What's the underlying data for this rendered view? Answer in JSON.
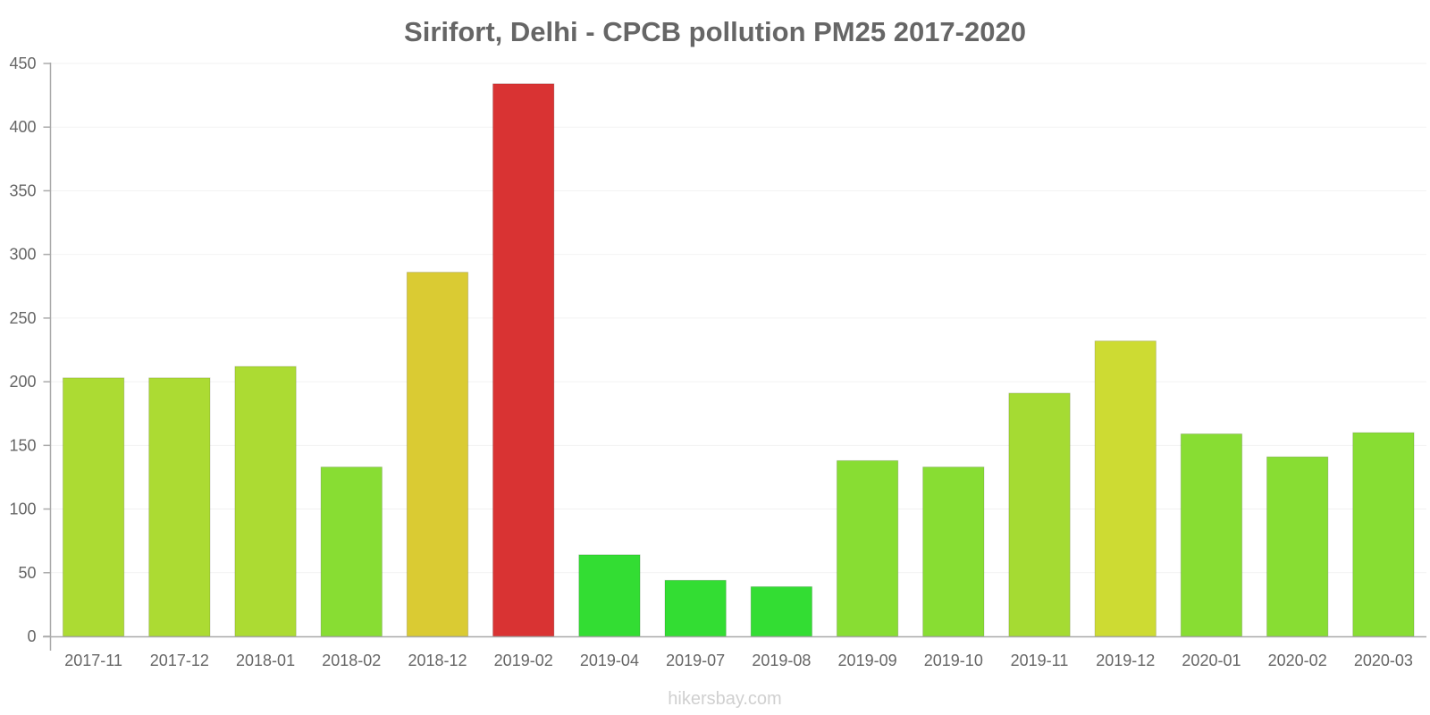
{
  "chart_data": {
    "type": "bar",
    "title": "Sirifort, Delhi - CPCB pollution PM25 2017-2020",
    "xlabel": "",
    "ylabel": "",
    "ylim": [
      0,
      450
    ],
    "yticks": [
      0,
      50,
      100,
      150,
      200,
      250,
      300,
      350,
      400,
      450
    ],
    "categories": [
      "2017-11",
      "2017-12",
      "2018-01",
      "2018-02",
      "2018-12",
      "2019-02",
      "2019-04",
      "2019-07",
      "2019-08",
      "2019-09",
      "2019-10",
      "2019-11",
      "2019-12",
      "2020-01",
      "2020-02",
      "2020-03"
    ],
    "values": [
      203,
      203,
      212,
      133,
      286,
      434,
      64,
      44,
      39,
      138,
      133,
      191,
      232,
      159,
      141,
      160
    ],
    "colors": [
      "#acdb33",
      "#acdb33",
      "#acdb33",
      "#88dd33",
      "#dacb33",
      "#d93333",
      "#33dd33",
      "#33dd33",
      "#33dd33",
      "#88dd33",
      "#88dd33",
      "#a5db33",
      "#cddb33",
      "#88dd33",
      "#88dd33",
      "#88dd33"
    ],
    "grid": true,
    "legend": "none"
  },
  "watermark": "hikersbay.com"
}
